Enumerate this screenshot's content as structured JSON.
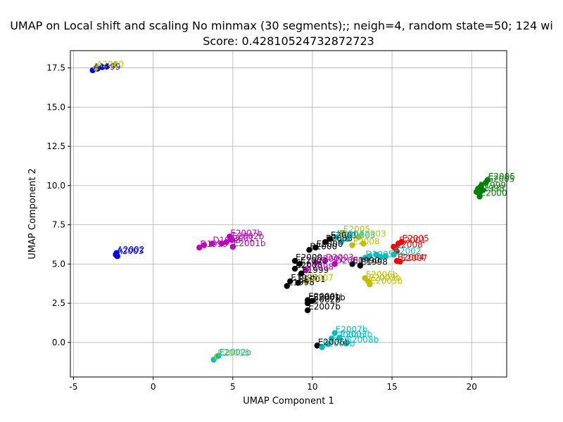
{
  "chart_data": {
    "type": "scatter",
    "title": "UMAP on Local shift and scaling No minmax (30 segments);; neigh=4, random state=50; 124 wi",
    "subtitle": "Score: 0.42810524732872723",
    "xlabel": "UMAP Component 1",
    "ylabel": "UMAP Component 2",
    "xlim": [
      -5.2,
      22.2
    ],
    "ylim": [
      -2.2,
      18.6
    ],
    "xticks": [
      "-5",
      "0",
      "5",
      "10",
      "15",
      "20"
    ],
    "yticks": [
      "0.0",
      "2.5",
      "5.0",
      "7.5",
      "10.0",
      "12.5",
      "15.0",
      "17.5"
    ],
    "xtick_values": [
      -5,
      0,
      5,
      10,
      15,
      20
    ],
    "ytick_values": [
      0,
      2.5,
      5,
      7.5,
      10,
      12.5,
      15,
      17.5
    ],
    "grid": true,
    "colors": {
      "blue": "#0000ff",
      "green": "#008000",
      "red": "#ff0000",
      "cyan": "#00bfbf",
      "magenta": "#bf00bf",
      "yellow": "#bfbf00",
      "black": "#000000"
    },
    "points": [
      {
        "x": -3.8,
        "y": 17.35,
        "color": "blue",
        "label": "A1999"
      },
      {
        "x": -3.5,
        "y": 17.45,
        "color": "blue",
        "label": ""
      },
      {
        "x": -3.2,
        "y": 17.55,
        "color": "blue",
        "label": ""
      },
      {
        "x": -2.9,
        "y": 17.6,
        "color": "blue",
        "label": ""
      },
      {
        "x": -3.6,
        "y": 17.5,
        "color": "yellow",
        "label": "A2000"
      },
      {
        "x": -2.4,
        "y": 17.7,
        "color": "yellow",
        "label": ""
      },
      {
        "x": -2.3,
        "y": 5.7,
        "color": "blue",
        "label": "A2002"
      },
      {
        "x": -2.35,
        "y": 5.6,
        "color": "blue",
        "label": "A2003"
      },
      {
        "x": -2.25,
        "y": 5.5,
        "color": "blue",
        "label": ""
      },
      {
        "x": 20.5,
        "y": 9.3,
        "color": "green",
        "label": "E2000"
      },
      {
        "x": 20.3,
        "y": 9.6,
        "color": "green",
        "label": "B1998"
      },
      {
        "x": 20.4,
        "y": 9.8,
        "color": "green",
        "label": "B1999"
      },
      {
        "x": 20.6,
        "y": 10.0,
        "color": "green",
        "label": ""
      },
      {
        "x": 20.9,
        "y": 10.2,
        "color": "green",
        "label": "G2005"
      },
      {
        "x": 21.0,
        "y": 10.35,
        "color": "green",
        "label": "E2005"
      },
      {
        "x": 20.5,
        "y": 9.5,
        "color": "green",
        "label": ""
      },
      {
        "x": 20.7,
        "y": 9.7,
        "color": "green",
        "label": ""
      },
      {
        "x": 2.9,
        "y": 6.05,
        "color": "magenta",
        "label": "D1999"
      },
      {
        "x": 3.2,
        "y": 6.2,
        "color": "magenta",
        "label": ""
      },
      {
        "x": 3.7,
        "y": 6.3,
        "color": "magenta",
        "label": "D1998"
      },
      {
        "x": 4.3,
        "y": 6.3,
        "color": "magenta",
        "label": ""
      },
      {
        "x": 4.6,
        "y": 6.4,
        "color": "magenta",
        "label": "E2001"
      },
      {
        "x": 4.9,
        "y": 6.55,
        "color": "magenta",
        "label": "E2002b"
      },
      {
        "x": 5.0,
        "y": 6.1,
        "color": "magenta",
        "label": "E2001b"
      },
      {
        "x": 4.8,
        "y": 6.75,
        "color": "magenta",
        "label": "E2007b"
      },
      {
        "x": 3.8,
        "y": -1.1,
        "color": "cyan",
        "label": ""
      },
      {
        "x": 4.0,
        "y": -0.9,
        "color": "yellow",
        "label": "E2001b"
      },
      {
        "x": 4.1,
        "y": -0.85,
        "color": "cyan",
        "label": "E2002b"
      },
      {
        "x": 9.8,
        "y": 5.9,
        "color": "black",
        "label": "B2000"
      },
      {
        "x": 10.2,
        "y": 6.05,
        "color": "black",
        "label": "E2000"
      },
      {
        "x": 10.8,
        "y": 6.4,
        "color": "black",
        "label": "E2003"
      },
      {
        "x": 11.1,
        "y": 6.6,
        "color": "black",
        "label": "E2001"
      },
      {
        "x": 11.5,
        "y": 6.7,
        "color": "cyan",
        "label": "E2004"
      },
      {
        "x": 11.8,
        "y": 6.4,
        "color": "cyan",
        "label": ""
      },
      {
        "x": 12.2,
        "y": 6.6,
        "color": "cyan",
        "label": "B2003"
      },
      {
        "x": 12.5,
        "y": 6.2,
        "color": "yellow",
        "label": "E2008"
      },
      {
        "x": 11.9,
        "y": 7.0,
        "color": "yellow",
        "label": "E2005"
      },
      {
        "x": 12.9,
        "y": 6.7,
        "color": "yellow",
        "label": "E2003"
      },
      {
        "x": 13.2,
        "y": 6.3,
        "color": "yellow",
        "label": ""
      },
      {
        "x": 8.9,
        "y": 5.2,
        "color": "black",
        "label": "E2000"
      },
      {
        "x": 9.2,
        "y": 5.0,
        "color": "black",
        "label": "E2002"
      },
      {
        "x": 8.9,
        "y": 4.7,
        "color": "black",
        "label": "E2008"
      },
      {
        "x": 9.3,
        "y": 4.4,
        "color": "black",
        "label": "E1999"
      },
      {
        "x": 9.6,
        "y": 4.6,
        "color": "magenta",
        "label": "E1998"
      },
      {
        "x": 10.2,
        "y": 5.1,
        "color": "magenta",
        "label": "D2001"
      },
      {
        "x": 10.8,
        "y": 5.2,
        "color": "magenta",
        "label": "D2003"
      },
      {
        "x": 11.4,
        "y": 5.0,
        "color": "magenta",
        "label": "D2000"
      },
      {
        "x": 12.5,
        "y": 5.0,
        "color": "black",
        "label": "E1990"
      },
      {
        "x": 13.0,
        "y": 4.9,
        "color": "black",
        "label": "E1998"
      },
      {
        "x": 8.6,
        "y": 3.9,
        "color": "black",
        "label": "E1995"
      },
      {
        "x": 8.4,
        "y": 3.6,
        "color": "black",
        "label": "E1998"
      },
      {
        "x": 9.1,
        "y": 3.8,
        "color": "black",
        "label": "E2001"
      },
      {
        "x": 9.6,
        "y": 3.9,
        "color": "yellow",
        "label": "E2007"
      },
      {
        "x": 9.7,
        "y": 2.7,
        "color": "black",
        "label": "E2000b"
      },
      {
        "x": 10.0,
        "y": 2.65,
        "color": "black",
        "label": "E2001b"
      },
      {
        "x": 9.7,
        "y": 2.5,
        "color": "black",
        "label": "E2002b"
      },
      {
        "x": 9.7,
        "y": 2.05,
        "color": "black",
        "label": "E2007b"
      },
      {
        "x": 13.3,
        "y": 5.4,
        "color": "cyan",
        "label": "D1995"
      },
      {
        "x": 13.6,
        "y": 5.5,
        "color": "cyan",
        "label": ""
      },
      {
        "x": 14.0,
        "y": 5.6,
        "color": "cyan",
        "label": ""
      },
      {
        "x": 14.3,
        "y": 5.45,
        "color": "cyan",
        "label": ""
      },
      {
        "x": 14.6,
        "y": 5.5,
        "color": "cyan",
        "label": ""
      },
      {
        "x": 13.3,
        "y": 4.1,
        "color": "yellow",
        "label": "E2006b"
      },
      {
        "x": 13.5,
        "y": 3.9,
        "color": "yellow",
        "label": "E2003b"
      },
      {
        "x": 13.6,
        "y": 3.7,
        "color": "yellow",
        "label": "E2005b"
      },
      {
        "x": 15.1,
        "y": 6.1,
        "color": "red",
        "label": ""
      },
      {
        "x": 15.4,
        "y": 6.3,
        "color": "red",
        "label": "E2001"
      },
      {
        "x": 15.6,
        "y": 6.4,
        "color": "red",
        "label": "E2005"
      },
      {
        "x": 15.2,
        "y": 6.0,
        "color": "red",
        "label": "E2008"
      },
      {
        "x": 15.3,
        "y": 5.8,
        "color": "red",
        "label": ""
      },
      {
        "x": 15.1,
        "y": 5.6,
        "color": "cyan",
        "label": "E2002"
      },
      {
        "x": 15.3,
        "y": 5.2,
        "color": "red",
        "label": "E2004"
      },
      {
        "x": 15.5,
        "y": 5.15,
        "color": "red",
        "label": "E2007"
      },
      {
        "x": 10.3,
        "y": -0.2,
        "color": "black",
        "label": "E2006b"
      },
      {
        "x": 10.6,
        "y": -0.3,
        "color": "cyan",
        "label": "E2005b"
      },
      {
        "x": 11.0,
        "y": -0.1,
        "color": "cyan",
        "label": ""
      },
      {
        "x": 11.2,
        "y": 0.25,
        "color": "cyan",
        "label": "E2004b"
      },
      {
        "x": 11.4,
        "y": 0.6,
        "color": "cyan",
        "label": "E2007b"
      },
      {
        "x": 11.7,
        "y": 0.3,
        "color": "cyan",
        "label": "E2003b"
      },
      {
        "x": 12.1,
        "y": -0.05,
        "color": "cyan",
        "label": "E2008b"
      }
    ]
  }
}
